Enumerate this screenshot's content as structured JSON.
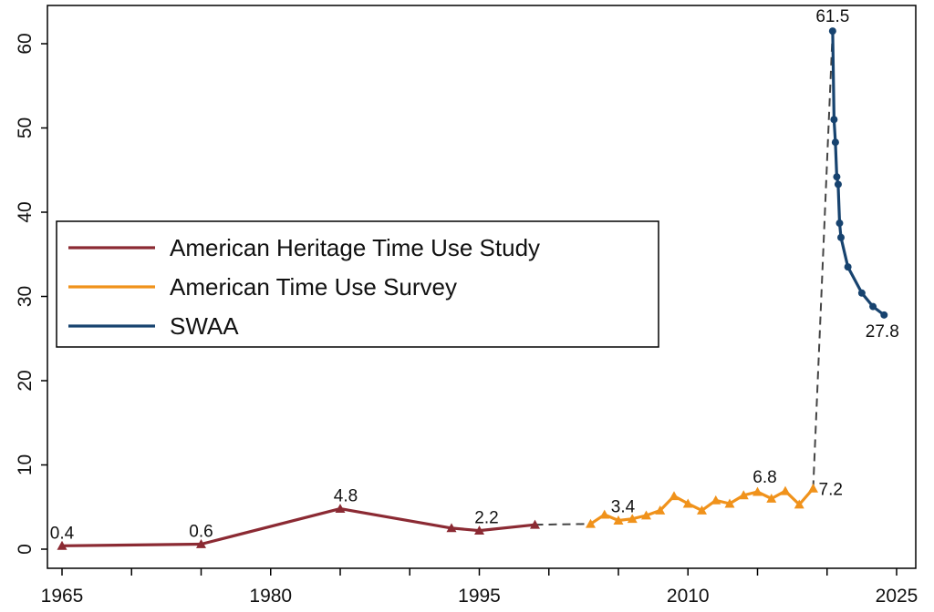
{
  "chart_data": {
    "type": "line",
    "title": "",
    "xlabel": "",
    "ylabel": "",
    "xlim": [
      1965,
      2025
    ],
    "ylim": [
      0,
      65
    ],
    "x_ticks": [
      1965,
      1980,
      1995,
      2010,
      2025
    ],
    "x_tick_labels": [
      "1965",
      "1980",
      "1995",
      "2010",
      "2025"
    ],
    "y_ticks": [
      0,
      10,
      20,
      30,
      40,
      50,
      60
    ],
    "y_tick_labels": [
      "0",
      "10",
      "20",
      "30",
      "40",
      "50",
      "60"
    ],
    "grid": false,
    "legend_position": "middle-left",
    "series": [
      {
        "name": "American Heritage Time Use Study",
        "color": "#8b2a33",
        "marker": "triangle",
        "x": [
          1965,
          1975,
          1985,
          1993,
          1995,
          1999
        ],
        "y": [
          0.4,
          0.6,
          4.8,
          2.5,
          2.2,
          2.9
        ]
      },
      {
        "name": "American Time Use Survey",
        "color": "#f0921b",
        "marker": "triangle",
        "x": [
          2003,
          2004,
          2005,
          2006,
          2007,
          2008,
          2009,
          2010,
          2011,
          2012,
          2013,
          2014,
          2015,
          2016,
          2017,
          2018,
          2019
        ],
        "y": [
          3.0,
          4.1,
          3.4,
          3.6,
          4.0,
          4.6,
          6.3,
          5.4,
          4.6,
          5.8,
          5.4,
          6.4,
          6.8,
          6.0,
          6.9,
          5.3,
          7.2
        ]
      },
      {
        "name": "SWAA",
        "color": "#17436f",
        "marker": "circle",
        "x": [
          2020.4,
          2020.5,
          2020.6,
          2020.7,
          2020.8,
          2020.9,
          2021.0,
          2021.5,
          2022.5,
          2023.3,
          2024.1
        ],
        "y": [
          61.5,
          51.0,
          48.3,
          44.2,
          43.3,
          38.7,
          37.0,
          33.5,
          30.4,
          28.8,
          27.8
        ]
      }
    ],
    "connectors": [
      {
        "x": [
          1999,
          2003
        ],
        "y": [
          2.9,
          3.0
        ]
      },
      {
        "x": [
          2019,
          2020.4
        ],
        "y": [
          7.2,
          61.5
        ]
      }
    ],
    "annotations": [
      {
        "text": "0.4",
        "x": 1965,
        "y": 0.4
      },
      {
        "text": "0.6",
        "x": 1975,
        "y": 0.6
      },
      {
        "text": "4.8",
        "x": 1985,
        "y": 4.8
      },
      {
        "text": "2.2",
        "x": 1995,
        "y": 2.2
      },
      {
        "text": "3.4",
        "x": 2005,
        "y": 3.4
      },
      {
        "text": "6.8",
        "x": 2015,
        "y": 6.8
      },
      {
        "text": "7.2",
        "x": 2019,
        "y": 7.2
      },
      {
        "text": "61.5",
        "x": 2020.4,
        "y": 61.5
      },
      {
        "text": "27.8",
        "x": 2024.1,
        "y": 27.8
      }
    ]
  }
}
